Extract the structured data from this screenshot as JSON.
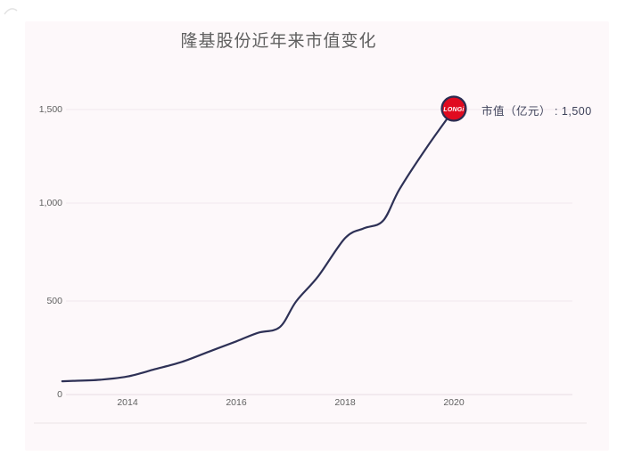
{
  "page": {
    "background_color": "#ffffff",
    "card_color": "#fdf8fa"
  },
  "chart_data": {
    "type": "line",
    "title": "隆基股份近年来市值变化",
    "end_label": "市值（亿元） : 1,500",
    "x_ticks": [
      "2014",
      "2016",
      "2018",
      "2020"
    ],
    "y_ticks": [
      "0",
      "500",
      "1,000",
      "1,500"
    ],
    "xlabel": "",
    "ylabel": "",
    "ylim": [
      0,
      1500
    ],
    "xlim_years": [
      2012.8,
      2020
    ],
    "grid": "faint-horizontal",
    "legend_position": "none",
    "series": [
      {
        "name": "市值（亿元）",
        "x": [
          2013,
          2014,
          2015,
          2016,
          2017,
          2018,
          2019,
          2020
        ],
        "values": [
          75,
          95,
          170,
          280,
          475,
          820,
          1100,
          1500
        ]
      }
    ],
    "render_points": [
      [
        2012.8,
        70
      ],
      [
        2013,
        72
      ],
      [
        2013.5,
        78
      ],
      [
        2014,
        95
      ],
      [
        2014.5,
        133
      ],
      [
        2015,
        172
      ],
      [
        2015.5,
        226
      ],
      [
        2016,
        280
      ],
      [
        2016.4,
        325
      ],
      [
        2016.8,
        355
      ],
      [
        2017.1,
        490
      ],
      [
        2017.5,
        620
      ],
      [
        2018,
        823
      ],
      [
        2018.35,
        875
      ],
      [
        2018.7,
        915
      ],
      [
        2019,
        1080
      ],
      [
        2019.5,
        1300
      ],
      [
        2020,
        1500
      ]
    ],
    "line_color": "#2e3156",
    "marker": {
      "label": "LONGi",
      "value": "1,500",
      "fill_color": "#e00b20",
      "ring_color": "#2b2d52",
      "text_color": "#ffffff"
    }
  }
}
